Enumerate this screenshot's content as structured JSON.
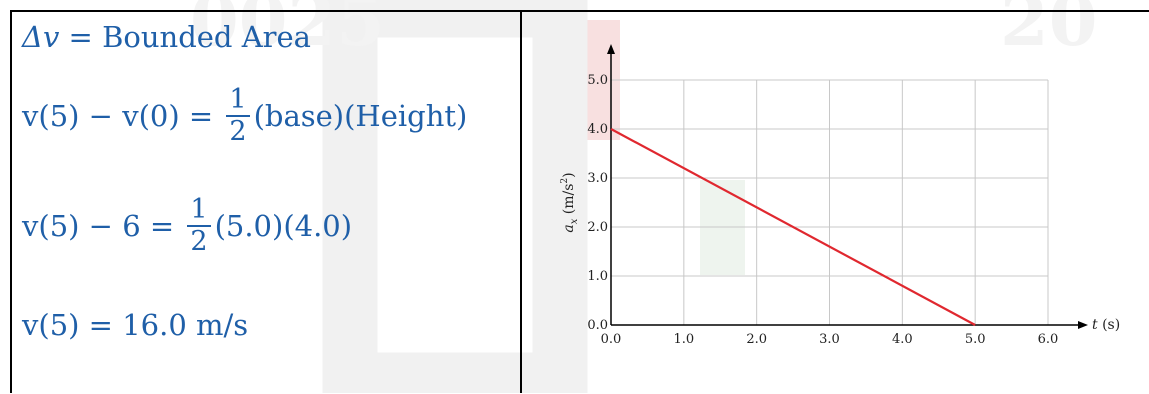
{
  "equations": {
    "line1": {
      "lhs": "Δv",
      "eq": " = ",
      "rhs": "Bounded Area"
    },
    "line2": {
      "lhs": "v(5) − v(0) = ",
      "frac_num": "1",
      "frac_den": "2",
      "rhs": "(base)(Height)"
    },
    "line3": {
      "lhs": "v(5) − 6 = ",
      "frac_num": "1",
      "frac_den": "2",
      "rhs": "(5.0)(4.0)"
    },
    "line4": {
      "lhs": "v(5) = ",
      "rhs": "16.0  m/s"
    }
  },
  "colors": {
    "equation_text": "#1f5fa8",
    "line": "#e0282f",
    "grid": "#c8c8c8",
    "axis": "#000000",
    "watermark": "#f3d6d6"
  },
  "chart_data": {
    "type": "line",
    "x_axis_label": "t (s)",
    "y_axis_label": "a",
    "y_axis_label_sub": "x",
    "y_axis_label_unit": "(m/s",
    "y_axis_label_unit_sup": "2",
    "y_axis_label_unit_close": ")",
    "xlim": [
      0,
      6
    ],
    "ylim": [
      0,
      5
    ],
    "x_ticks": [
      "0.0",
      "1.0",
      "2.0",
      "3.0",
      "4.0",
      "5.0",
      "6.0"
    ],
    "y_ticks": [
      "0.0",
      "1.0",
      "2.0",
      "3.0",
      "4.0",
      "5.0"
    ],
    "grid": true,
    "series": [
      {
        "x": [
          0.0,
          5.0
        ],
        "y": [
          4.0,
          0.0
        ]
      }
    ]
  }
}
